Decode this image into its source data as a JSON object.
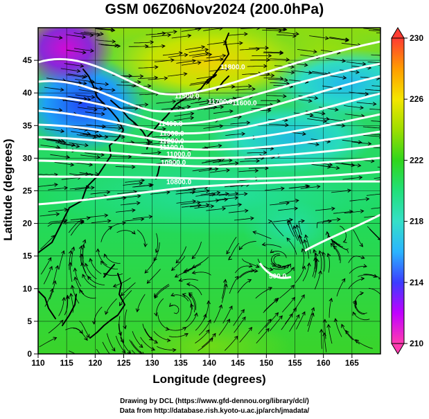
{
  "title": "GSM 06Z06Nov2024 (200.0hPa)",
  "axes": {
    "xlabel": "Longitude (degrees)",
    "ylabel": "Latitude (degrees)",
    "xticks": [
      "110",
      "115",
      "120",
      "125",
      "130",
      "135",
      "140",
      "145",
      "150",
      "155",
      "160",
      "165"
    ],
    "yticks": [
      "0",
      "5",
      "10",
      "15",
      "20",
      "25",
      "30",
      "35",
      "40",
      "45"
    ],
    "xlim": [
      110,
      170
    ],
    "ylim": [
      0,
      50
    ]
  },
  "colorbar": {
    "labels": [
      "230",
      "226",
      "222",
      "218",
      "214",
      "210"
    ],
    "range": [
      210,
      230
    ],
    "colors": [
      "#ff3cb0",
      "#c000ff",
      "#3c3cff",
      "#2ab4ff",
      "#34e0c8",
      "#21e07a",
      "#30d61c",
      "#9ede00",
      "#f4e600",
      "#ff9c00",
      "#ff3c32"
    ]
  },
  "contours": {
    "labels": [
      "11800.0",
      "11700.0",
      "11600.0",
      "11500.0",
      "11400.0",
      "11300.0",
      "11200.0",
      "11100.0",
      "11000.0",
      "10900.0",
      "10800.0",
      "500.0"
    ]
  },
  "credits": {
    "line1": "Drawing by DCL (https://www.gfd-dennou.org/library/dcl/)",
    "line2": "Data from http://database.rish.kyoto-u.ac.jp/arch/jmadata/"
  }
}
